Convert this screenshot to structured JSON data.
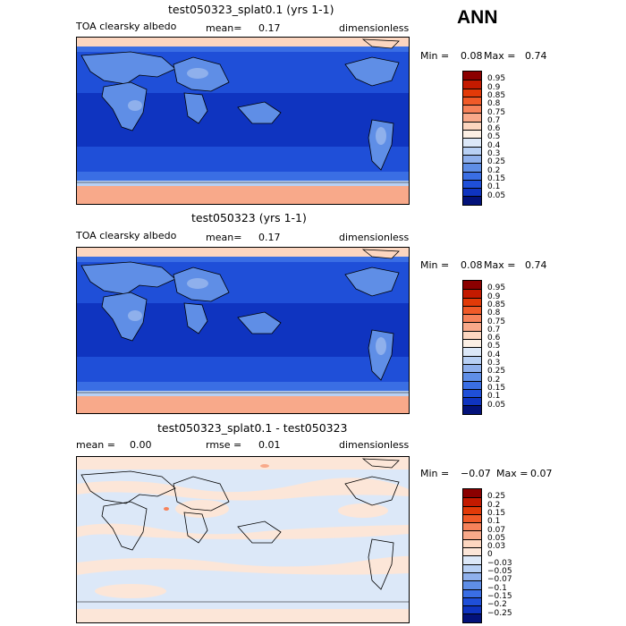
{
  "season": "ANN",
  "panels": [
    {
      "title": "test050323_splat0.1 (yrs 1-1)",
      "left_label": "TOA clearsky albedo",
      "mid_label": "mean=",
      "mid_value": "0.17",
      "right_label": "dimensionless",
      "min_label": "Min =",
      "min_value": "0.08",
      "max_label": "Max =",
      "max_value": "0.74",
      "colorbar_labels": [
        "0.95",
        "0.9",
        "0.85",
        "0.8",
        "0.75",
        "0.7",
        "0.6",
        "0.5",
        "0.4",
        "0.3",
        "0.25",
        "0.2",
        "0.15",
        "0.1",
        "0.05"
      ],
      "colorbar_colors": [
        "#8b0000",
        "#c41a00",
        "#e23a08",
        "#f05a28",
        "#f6825a",
        "#f8a98a",
        "#fcd6c0",
        "#fcefe4",
        "#dce8f8",
        "#b8d0f4",
        "#8fb0ec",
        "#5f8ee6",
        "#3a6ee4",
        "#1f4fd8",
        "#0f34c0",
        "#03127a"
      ]
    },
    {
      "title": "test050323 (yrs 1-1)",
      "left_label": "TOA clearsky albedo",
      "mid_label": "mean=",
      "mid_value": "0.17",
      "right_label": "dimensionless",
      "min_label": "Min =",
      "min_value": "0.08",
      "max_label": "Max =",
      "max_value": "0.74",
      "colorbar_labels": [
        "0.95",
        "0.9",
        "0.85",
        "0.8",
        "0.75",
        "0.7",
        "0.6",
        "0.5",
        "0.4",
        "0.3",
        "0.25",
        "0.2",
        "0.15",
        "0.1",
        "0.05"
      ],
      "colorbar_colors": [
        "#8b0000",
        "#c41a00",
        "#e23a08",
        "#f05a28",
        "#f6825a",
        "#f8a98a",
        "#fcd6c0",
        "#fcefe4",
        "#dce8f8",
        "#b8d0f4",
        "#8fb0ec",
        "#5f8ee6",
        "#3a6ee4",
        "#1f4fd8",
        "#0f34c0",
        "#03127a"
      ]
    },
    {
      "title": "test050323_splat0.1 - test050323",
      "left_label": "mean =",
      "left_value": "0.00",
      "mid_label": "rmse =",
      "mid_value": "0.01",
      "right_label": "dimensionless",
      "min_label": "Min =",
      "min_value": "−0.07",
      "max_label": "Max =",
      "max_value": "0.07",
      "colorbar_labels": [
        "0.25",
        "0.2",
        "0.15",
        "0.1",
        "0.07",
        "0.05",
        "0.03",
        "0",
        "−0.03",
        "−0.05",
        "−0.07",
        "−0.1",
        "−0.15",
        "−0.2",
        "−0.25"
      ],
      "colorbar_colors": [
        "#8b0000",
        "#c41a00",
        "#e23a08",
        "#f05a28",
        "#f6825a",
        "#f8a98a",
        "#fcd6c0",
        "#fce6d8",
        "#dce8f8",
        "#b8d0f4",
        "#8fb0ec",
        "#5f8ee6",
        "#3a6ee4",
        "#1f4fd8",
        "#0f34c0",
        "#03127a"
      ]
    }
  ]
}
